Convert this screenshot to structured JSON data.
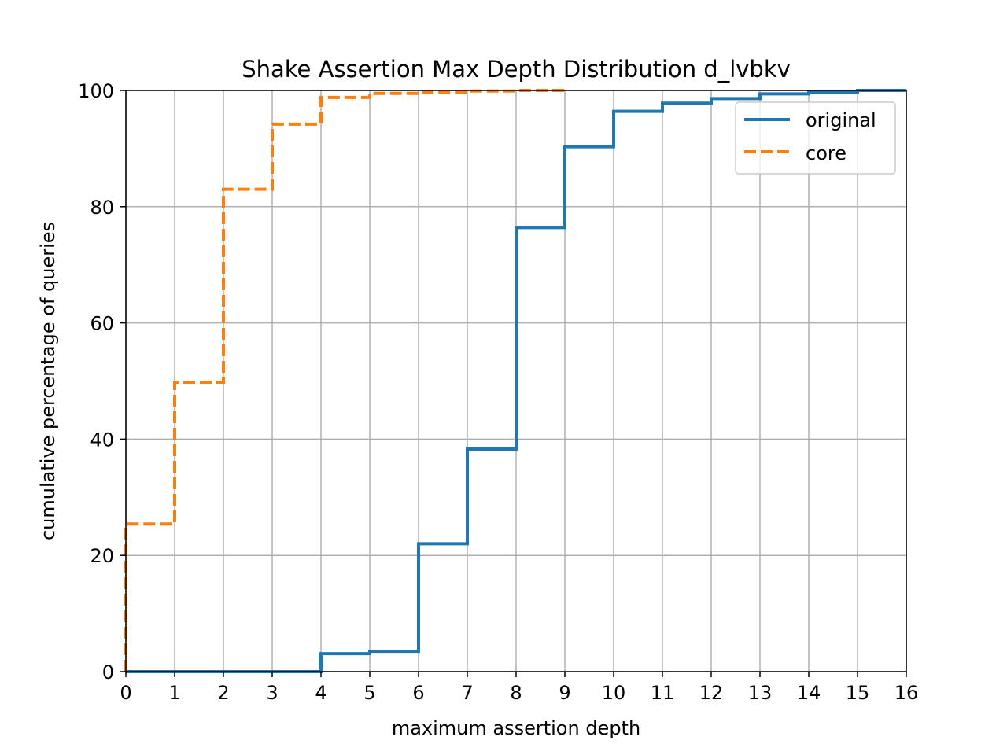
{
  "chart_data": {
    "type": "line",
    "step": "post",
    "title": "Shake Assertion Max Depth Distribution d_lvbkv",
    "xlabel": "maximum assertion depth",
    "ylabel": "cumulative percentage of queries",
    "xlim": [
      0,
      16
    ],
    "ylim": [
      0,
      100
    ],
    "xticks": [
      0,
      1,
      2,
      3,
      4,
      5,
      6,
      7,
      8,
      9,
      10,
      11,
      12,
      13,
      14,
      15,
      16
    ],
    "yticks": [
      0,
      20,
      40,
      60,
      80,
      100
    ],
    "grid": true,
    "legend_position": "top-right",
    "series": [
      {
        "name": "original",
        "color": "#1f77b4",
        "line_style": "solid",
        "x": [
          0,
          1,
          2,
          3,
          4,
          5,
          6,
          7,
          8,
          9,
          10,
          11,
          12,
          13,
          14,
          15,
          16
        ],
        "y": [
          0,
          0,
          0,
          0,
          3.1,
          3.5,
          22.0,
          38.3,
          76.4,
          90.3,
          96.4,
          97.8,
          98.6,
          99.4,
          99.7,
          100,
          100
        ]
      },
      {
        "name": "core",
        "color": "#ff7f0e",
        "line_style": "dashed",
        "x": [
          0,
          1,
          2,
          3,
          4,
          5,
          6,
          7,
          8,
          9
        ],
        "y": [
          25.4,
          49.8,
          83.0,
          94.2,
          98.8,
          99.5,
          99.7,
          99.9,
          100,
          100
        ]
      }
    ]
  }
}
